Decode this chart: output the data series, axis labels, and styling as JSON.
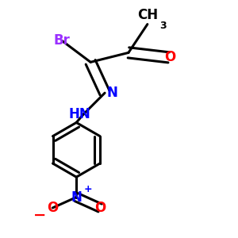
{
  "bg_color": "#ffffff",
  "bond_color": "#000000",
  "bond_width": 2.2,
  "atom_colors": {
    "Br": "#9b30ff",
    "N": "#0000ff",
    "O_carbonyl": "#ff0000",
    "O_nitro": "#ff0000",
    "C": "#000000"
  },
  "figsize": [
    3.0,
    3.0
  ],
  "dpi": 100,
  "xlim": [
    0.0,
    1.0
  ],
  "ylim": [
    0.0,
    1.0
  ],
  "fs_main": 12,
  "fs_sub": 9,
  "fs_charge": 9
}
